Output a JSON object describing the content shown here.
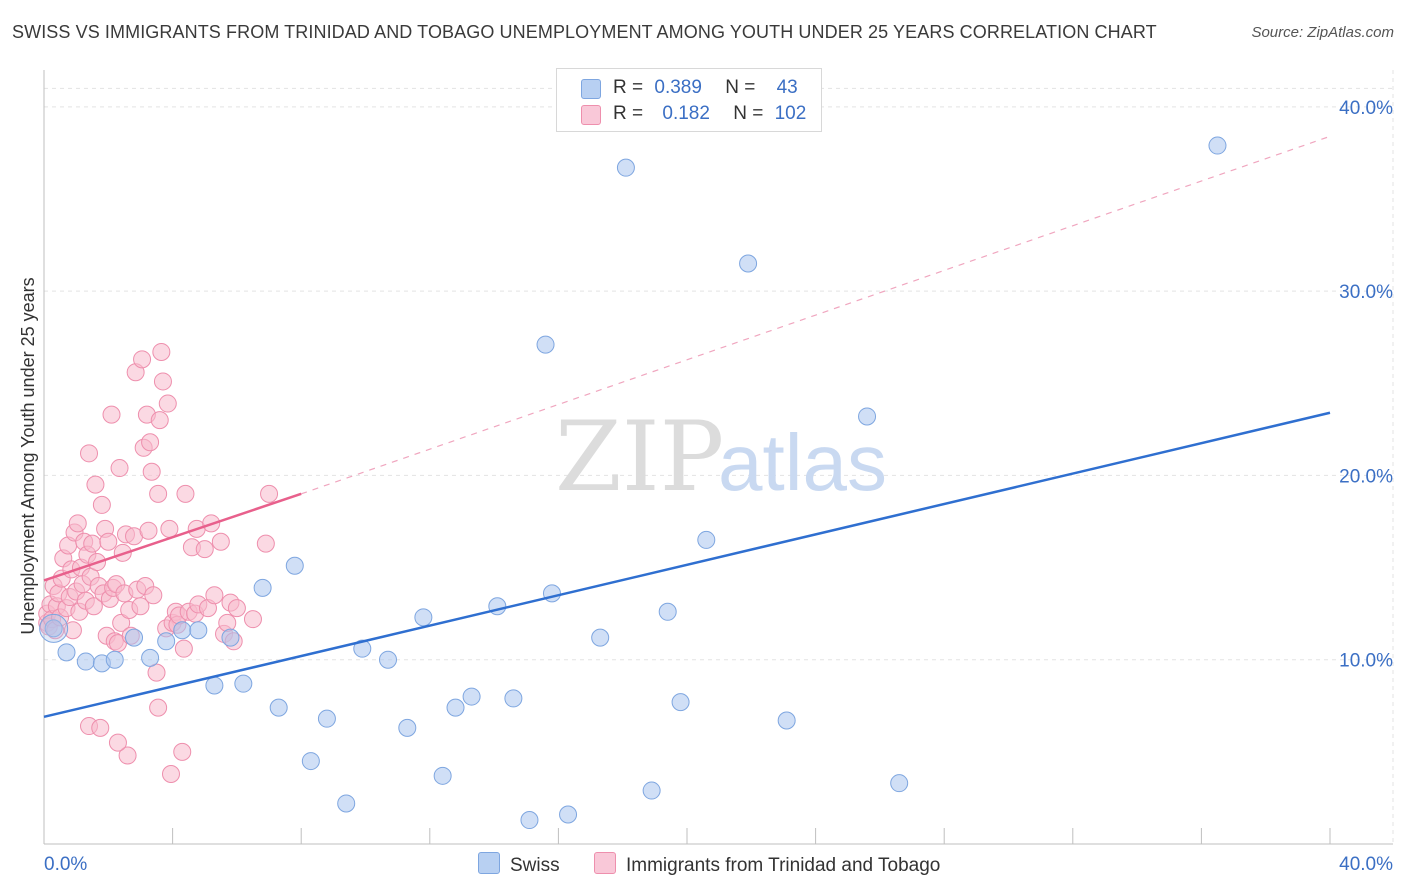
{
  "chart_data": {
    "type": "scatter",
    "title": "SWISS VS IMMIGRANTS FROM TRINIDAD AND TOBAGO UNEMPLOYMENT AMONG YOUTH UNDER 25 YEARS CORRELATION CHART",
    "source": "Source: ZipAtlas.com",
    "xlabel": "",
    "ylabel": "Unemployment Among Youth under 25 years",
    "xlim": [
      0,
      40
    ],
    "ylim": [
      0,
      42
    ],
    "x_tick_labels": {
      "min": "0.0%",
      "max": "40.0%"
    },
    "y_ticks": [
      {
        "value": 10,
        "label": "10.0%"
      },
      {
        "value": 20,
        "label": "20.0%"
      },
      {
        "value": 30,
        "label": "30.0%"
      },
      {
        "value": 40,
        "label": "40.0%"
      }
    ],
    "watermark": {
      "zip": "ZIP",
      "atlas": "atlas"
    },
    "legend": [
      {
        "r_label": "R =",
        "r_value": "0.389",
        "n_label": "N =",
        "n_value": "43"
      },
      {
        "r_label": "R =",
        "r_value": "0.182",
        "n_label": "N =",
        "n_value": "102"
      }
    ],
    "series": [
      {
        "name": "Swiss",
        "color": "#a9c5ee",
        "stroke": "#7ea6e0",
        "trend": {
          "x": [
            0,
            40
          ],
          "y": [
            6.9,
            23.4
          ],
          "color": "#2f6fd0"
        },
        "points": [
          [
            0.3,
            11.7
          ],
          [
            0.7,
            10.4
          ],
          [
            1.3,
            9.9
          ],
          [
            1.8,
            9.8
          ],
          [
            2.2,
            10.0
          ],
          [
            2.8,
            11.2
          ],
          [
            3.3,
            10.1
          ],
          [
            3.8,
            11.0
          ],
          [
            4.3,
            11.6
          ],
          [
            4.8,
            11.6
          ],
          [
            5.3,
            8.6
          ],
          [
            5.8,
            11.2
          ],
          [
            6.2,
            8.7
          ],
          [
            6.8,
            13.9
          ],
          [
            7.3,
            7.4
          ],
          [
            7.8,
            15.1
          ],
          [
            8.3,
            4.5
          ],
          [
            8.8,
            6.8
          ],
          [
            9.4,
            2.2
          ],
          [
            9.9,
            10.6
          ],
          [
            10.7,
            10.0
          ],
          [
            11.3,
            6.3
          ],
          [
            11.8,
            12.3
          ],
          [
            12.4,
            3.7
          ],
          [
            12.8,
            7.4
          ],
          [
            13.3,
            8.0
          ],
          [
            14.1,
            12.9
          ],
          [
            14.6,
            7.9
          ],
          [
            15.1,
            1.3
          ],
          [
            15.6,
            27.1
          ],
          [
            15.8,
            13.6
          ],
          [
            16.3,
            1.6
          ],
          [
            17.3,
            11.2
          ],
          [
            18.1,
            36.7
          ],
          [
            18.9,
            2.9
          ],
          [
            19.4,
            12.6
          ],
          [
            19.8,
            7.7
          ],
          [
            20.6,
            16.5
          ],
          [
            21.9,
            31.5
          ],
          [
            23.1,
            6.7
          ],
          [
            25.6,
            23.2
          ],
          [
            26.6,
            3.3
          ],
          [
            36.5,
            37.9
          ]
        ]
      },
      {
        "name": "Immigrants from Trinidad and Tobago",
        "color": "#f7b9cc",
        "stroke": "#ee8fad",
        "trend": {
          "x": [
            0,
            8.0
          ],
          "y": [
            14.3,
            19.0
          ],
          "color": "#e8608c",
          "dashed_x": [
            8.0,
            40
          ],
          "dashed_y": [
            19.0,
            38.4
          ]
        },
        "points": [
          [
            0.1,
            12.0
          ],
          [
            0.1,
            12.5
          ],
          [
            0.15,
            11.8
          ],
          [
            0.2,
            13.0
          ],
          [
            0.25,
            12.2
          ],
          [
            0.3,
            14.0
          ],
          [
            0.35,
            11.6
          ],
          [
            0.4,
            12.9
          ],
          [
            0.45,
            13.6
          ],
          [
            0.5,
            12.3
          ],
          [
            0.55,
            14.4
          ],
          [
            0.6,
            15.5
          ],
          [
            0.7,
            12.8
          ],
          [
            0.75,
            16.2
          ],
          [
            0.8,
            13.4
          ],
          [
            0.85,
            14.9
          ],
          [
            0.9,
            11.6
          ],
          [
            0.95,
            16.9
          ],
          [
            1.0,
            13.7
          ],
          [
            1.05,
            17.4
          ],
          [
            1.1,
            12.6
          ],
          [
            1.15,
            15.0
          ],
          [
            1.2,
            14.1
          ],
          [
            1.25,
            16.4
          ],
          [
            1.3,
            13.2
          ],
          [
            1.35,
            15.7
          ],
          [
            1.4,
            21.2
          ],
          [
            1.45,
            14.5
          ],
          [
            1.5,
            16.3
          ],
          [
            1.55,
            12.9
          ],
          [
            1.6,
            19.5
          ],
          [
            1.65,
            15.3
          ],
          [
            1.7,
            14.0
          ],
          [
            1.8,
            18.4
          ],
          [
            1.85,
            13.6
          ],
          [
            1.9,
            17.1
          ],
          [
            1.95,
            11.3
          ],
          [
            2.0,
            16.4
          ],
          [
            2.05,
            13.3
          ],
          [
            2.1,
            23.3
          ],
          [
            2.15,
            13.9
          ],
          [
            2.2,
            11.0
          ],
          [
            2.25,
            14.1
          ],
          [
            2.3,
            10.9
          ],
          [
            2.35,
            20.4
          ],
          [
            2.4,
            12.0
          ],
          [
            2.45,
            15.8
          ],
          [
            2.5,
            13.6
          ],
          [
            2.55,
            16.8
          ],
          [
            2.6,
            4.8
          ],
          [
            2.65,
            12.7
          ],
          [
            2.7,
            11.3
          ],
          [
            2.8,
            16.7
          ],
          [
            2.85,
            25.6
          ],
          [
            2.9,
            13.8
          ],
          [
            3.0,
            12.9
          ],
          [
            3.05,
            26.3
          ],
          [
            3.1,
            21.5
          ],
          [
            3.15,
            14.0
          ],
          [
            3.2,
            23.3
          ],
          [
            3.25,
            17.0
          ],
          [
            3.3,
            21.8
          ],
          [
            3.35,
            20.2
          ],
          [
            3.4,
            13.5
          ],
          [
            3.5,
            9.3
          ],
          [
            3.55,
            19.0
          ],
          [
            3.6,
            23.0
          ],
          [
            3.65,
            26.7
          ],
          [
            3.7,
            25.1
          ],
          [
            3.8,
            11.7
          ],
          [
            3.85,
            23.9
          ],
          [
            3.9,
            17.1
          ],
          [
            3.95,
            3.8
          ],
          [
            4.0,
            12.0
          ],
          [
            4.1,
            12.6
          ],
          [
            4.15,
            11.9
          ],
          [
            4.2,
            12.4
          ],
          [
            4.3,
            5.0
          ],
          [
            4.35,
            10.6
          ],
          [
            4.4,
            19.0
          ],
          [
            4.5,
            12.6
          ],
          [
            4.6,
            16.1
          ],
          [
            4.7,
            12.5
          ],
          [
            4.75,
            17.1
          ],
          [
            4.8,
            13.0
          ],
          [
            5.0,
            16.0
          ],
          [
            5.1,
            12.8
          ],
          [
            5.2,
            17.4
          ],
          [
            5.3,
            13.5
          ],
          [
            5.5,
            16.4
          ],
          [
            5.6,
            11.4
          ],
          [
            5.7,
            12.0
          ],
          [
            5.8,
            13.1
          ],
          [
            5.9,
            11.0
          ],
          [
            6.0,
            12.8
          ],
          [
            6.5,
            12.2
          ],
          [
            6.9,
            16.3
          ],
          [
            7.0,
            19.0
          ],
          [
            1.4,
            6.4
          ],
          [
            1.75,
            6.3
          ],
          [
            2.3,
            5.5
          ],
          [
            3.55,
            7.4
          ]
        ]
      }
    ]
  }
}
